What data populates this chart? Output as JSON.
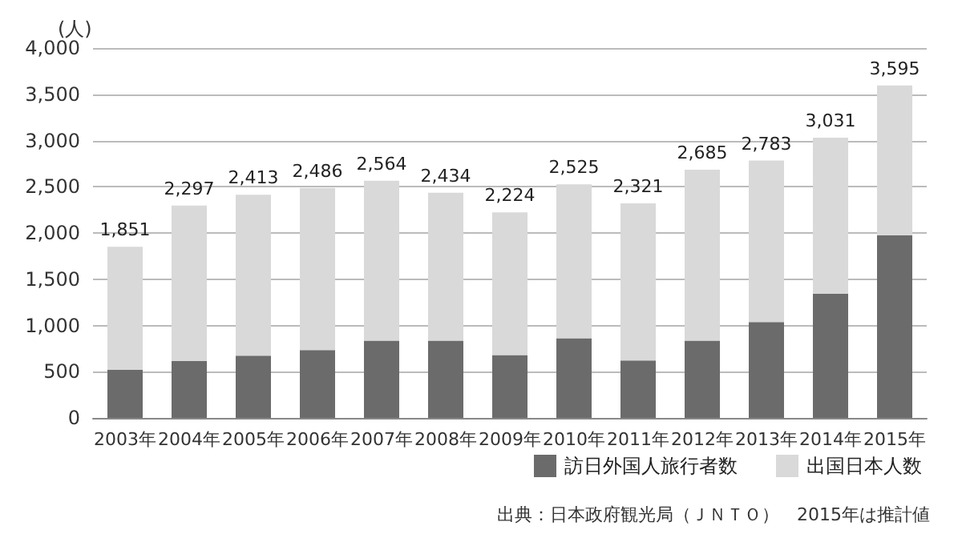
{
  "chart_data": {
    "type": "bar",
    "stacked": true,
    "ylabel": "(人)",
    "categories": [
      "2003年",
      "2004年",
      "2005年",
      "2006年",
      "2007年",
      "2008年",
      "2009年",
      "2010年",
      "2011年",
      "2012年",
      "2013年",
      "2014年",
      "2015年"
    ],
    "series": [
      {
        "name": "訪日外国人旅行者数",
        "color": "#6b6b6b",
        "values": [
          521,
          614,
          673,
          733,
          835,
          835,
          679,
          861,
          622,
          836,
          1036,
          1341,
          1974
        ]
      },
      {
        "name": "出国日本人数",
        "color": "#d9d9d9",
        "values": [
          1330,
          1683,
          1740,
          1753,
          1729,
          1599,
          1545,
          1664,
          1699,
          1849,
          1747,
          1690,
          1621
        ]
      }
    ],
    "totals": [
      "1,851",
      "2,297",
      "2,413",
      "2,486",
      "2,564",
      "2,434",
      "2,224",
      "2,525",
      "2,321",
      "2,685",
      "2,783",
      "3,031",
      "3,595"
    ],
    "ylim": [
      0,
      4000
    ],
    "yticks": [
      0,
      500,
      {
        "value": 1000,
        "label": "1,000"
      },
      {
        "value": 1500,
        "label": "1,500"
      },
      {
        "value": 2000,
        "label": "2,000"
      },
      {
        "value": 2500,
        "label": "2,500"
      },
      {
        "value": 3000,
        "label": "3,000"
      },
      {
        "value": 3500,
        "label": "3,500"
      },
      {
        "value": 4000,
        "label": "4,000"
      }
    ],
    "grid": "y",
    "legend": "bottom right",
    "annotations": [
      "出典：日本政府観光局（ＪＮＴＯ）　2015年は推計値"
    ]
  }
}
